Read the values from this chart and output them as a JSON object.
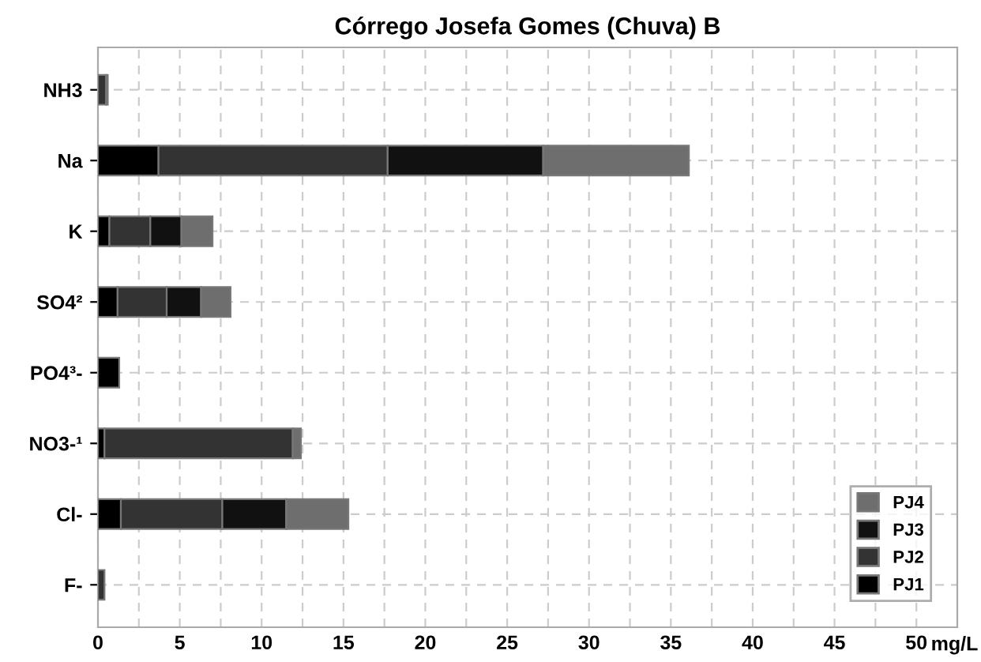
{
  "chart_data": {
    "type": "bar",
    "orientation": "horizontal",
    "stacked": true,
    "title": "Córrego Josefa Gomes (Chuva) B",
    "xlabel": "mg/L",
    "categories": [
      "NH3",
      "Na",
      "K",
      "SO4²",
      "PO4³-",
      "NO3-¹",
      "Cl-",
      "F-"
    ],
    "series": [
      {
        "name": "PJ1",
        "color": "#000000",
        "values": [
          0,
          3.7,
          0.7,
          1.2,
          1.3,
          0.4,
          1.4,
          0
        ]
      },
      {
        "name": "PJ2",
        "color": "#333333",
        "values": [
          0.5,
          14.0,
          2.5,
          3.0,
          0,
          11.5,
          6.2,
          0.4
        ]
      },
      {
        "name": "PJ3",
        "color": "#111111",
        "values": [
          0,
          9.5,
          1.9,
          2.1,
          0,
          0,
          3.9,
          0
        ]
      },
      {
        "name": "PJ4",
        "color": "#6e6e6e",
        "values": [
          0.1,
          8.9,
          1.9,
          1.8,
          0,
          0.5,
          3.8,
          0
        ]
      }
    ],
    "xlim": [
      0,
      52.5
    ],
    "xticks": [
      0,
      {
        "value": 2.5,
        "label": null
      },
      5,
      {
        "value": 7.5,
        "label": null
      },
      10,
      {
        "value": 12.5,
        "label": null
      },
      15,
      {
        "value": 17.5,
        "label": null
      },
      20,
      {
        "value": 22.5,
        "label": null
      },
      25,
      {
        "value": 27.5,
        "label": null
      },
      30,
      {
        "value": 32.5,
        "label": null
      },
      35,
      {
        "value": 37.5,
        "label": null
      },
      40,
      {
        "value": 42.5,
        "label": null
      },
      45,
      {
        "value": 47.5,
        "label": null
      },
      50
    ],
    "grid": true,
    "legend": "bottom right"
  }
}
